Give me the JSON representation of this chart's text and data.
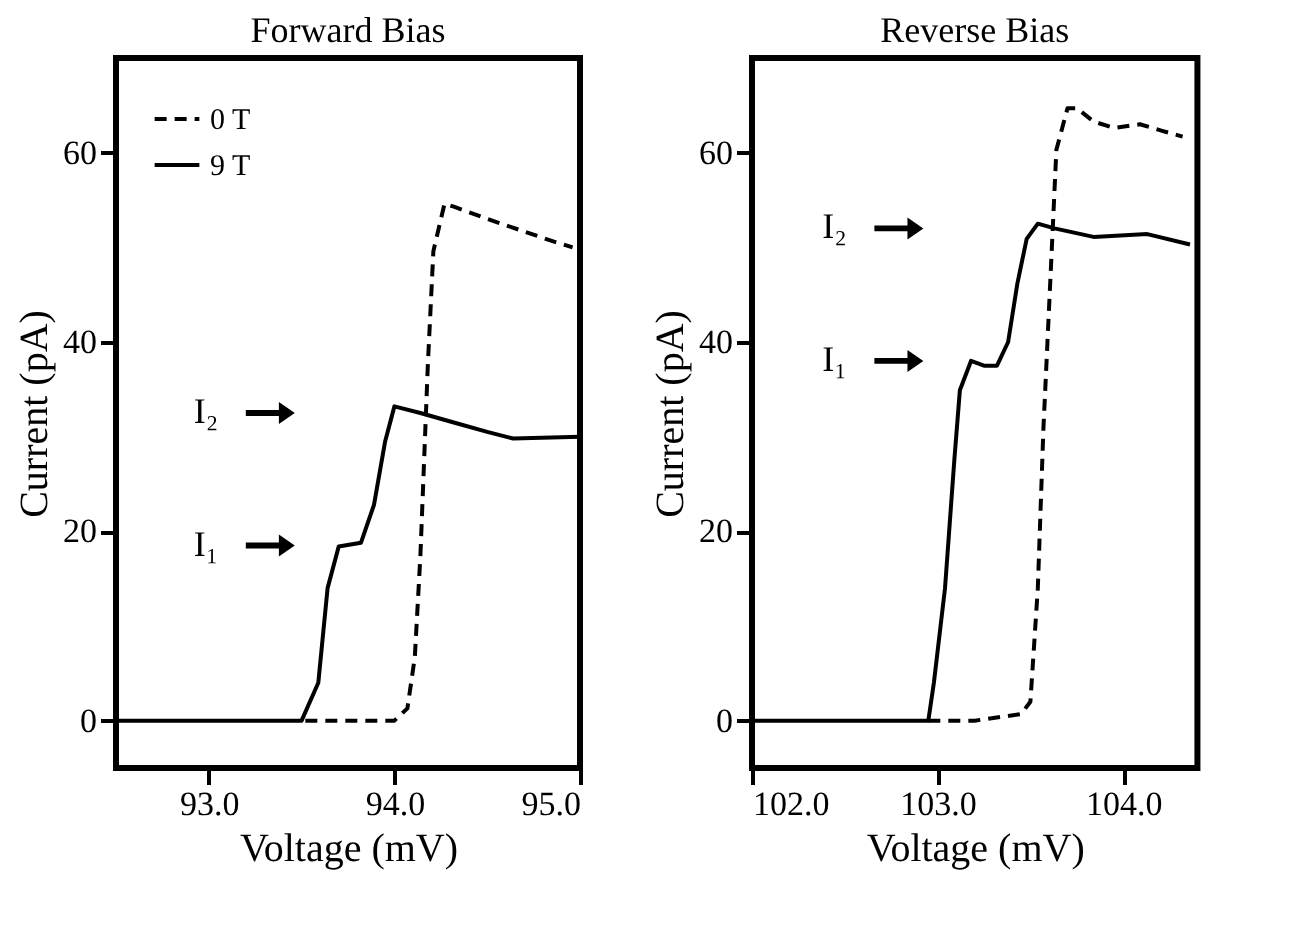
{
  "chart_data": [
    {
      "type": "line",
      "title": "Forward Bias",
      "xlabel": "Voltage (mV)",
      "ylabel": "Current (pA)",
      "xlim": [
        92.5,
        95.0
      ],
      "ylim": [
        -5,
        70
      ],
      "xticks": [
        {
          "value": 93,
          "label": "93.0"
        },
        {
          "value": 94,
          "label": "94.0"
        },
        {
          "value": 95,
          "label": "95.0"
        }
      ],
      "yticks": [
        0,
        20,
        40,
        60
      ],
      "grid": false,
      "legend": "top left",
      "series": [
        {
          "name": "0 T",
          "color": "#000000",
          "line_style": "dashed",
          "x": [
            93.52,
            93.8,
            94.0,
            94.07,
            94.11,
            94.14,
            94.18,
            94.21,
            94.27,
            94.32,
            94.5,
            94.86,
            94.96
          ],
          "values": [
            0,
            0,
            0,
            1.3,
            6.7,
            17.4,
            37.5,
            49.6,
            54.6,
            54.3,
            53,
            50.6,
            50
          ]
        },
        {
          "name": "9 T",
          "color": "#000000",
          "line_style": "solid",
          "x": [
            92.5,
            93.0,
            93.5,
            93.59,
            93.64,
            93.7,
            93.82,
            93.89,
            93.95,
            94.0,
            94.14,
            94.32,
            94.5,
            94.64,
            95.0
          ],
          "values": [
            0,
            0,
            0,
            4,
            14,
            18.4,
            18.8,
            22.8,
            29.5,
            33.2,
            32.5,
            31.5,
            30.5,
            29.8,
            30
          ]
        }
      ],
      "annotations": [
        "I₁",
        "I₂"
      ]
    },
    {
      "type": "line",
      "title": "Reverse Bias",
      "xlabel": "Voltage (mV)",
      "ylabel": "Current (pA)",
      "xlim": [
        102.0,
        104.4
      ],
      "ylim": [
        -5,
        70
      ],
      "xticks": [
        {
          "value": 102,
          "label": "102.0"
        },
        {
          "value": 103,
          "label": "103.0"
        },
        {
          "value": 104,
          "label": "104.0"
        }
      ],
      "yticks": [
        0,
        20,
        40,
        60
      ],
      "grid": false,
      "series": [
        {
          "color": "#000000",
          "line_style": "dashed",
          "x": [
            102.95,
            103.2,
            103.45,
            103.5,
            103.54,
            103.57,
            103.61,
            103.64,
            103.7,
            103.75,
            103.84,
            103.95,
            104.09,
            104.21,
            104.32
          ],
          "values": [
            0,
            0,
            0.7,
            2,
            14,
            30.8,
            47.6,
            60.3,
            64.7,
            64.7,
            63.3,
            62.6,
            63,
            62.3,
            61.7
          ]
        },
        {
          "color": "#000000",
          "line_style": "solid",
          "x": [
            102.0,
            102.5,
            102.95,
            102.98,
            103.04,
            103.09,
            103.12,
            103.18,
            103.25,
            103.32,
            103.38,
            103.43,
            103.48,
            103.54,
            103.63,
            103.84,
            104.13,
            104.36
          ],
          "values": [
            0,
            0,
            0,
            4,
            14,
            27.5,
            34.9,
            38,
            37.5,
            37.5,
            40,
            46.2,
            50.9,
            52.5,
            52,
            51.1,
            51.4,
            50.3
          ]
        }
      ],
      "annotations": [
        "I₁",
        "I₂"
      ]
    }
  ]
}
